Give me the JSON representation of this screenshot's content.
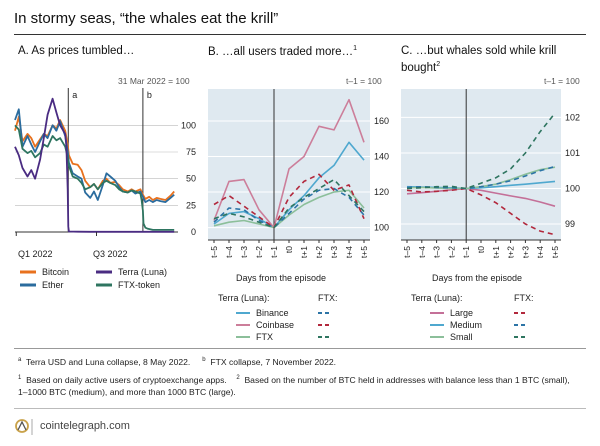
{
  "title": "In stormy seas, “the whales eat the krill”",
  "colors": {
    "bitcoin": "#e8711e",
    "ether": "#2b6c9e",
    "luna": "#4a2c82",
    "ftt": "#2e7560",
    "binance": "#4fa8cf",
    "coinbase": "#cc7e9a",
    "ftx_line": "#8cbf9a",
    "ftx_binance": "#2c74a6",
    "ftx_coinbase": "#b2283c",
    "ftx_ftx": "#2e7560",
    "large": "#c47098",
    "medium": "#4fa8cf",
    "small": "#8cbf9a",
    "panel_bg": "#dfe9f0"
  },
  "panelA": {
    "title": "A. As prices tumbled…",
    "subtitle": "31 Mar 2022 = 100",
    "note_a": "a",
    "note_b": "b"
  },
  "panelB": {
    "title": "B. …all users traded more…",
    "title_sup": "1",
    "subtitle": "t–1 = 100",
    "xlabel": "Days from the episode"
  },
  "panelC": {
    "title_line1": "C. …but whales sold while krill",
    "title_line2": "bought",
    "title_sup": "2",
    "subtitle": "t–1 = 100",
    "xlabel": "Days from the episode"
  },
  "legendA": {
    "bitcoin": "Bitcoin",
    "ether": "Ether",
    "luna": "Terra (Luna)",
    "ftt": "FTX-token"
  },
  "legendB": {
    "head_terra": "Terra (Luna):",
    "head_ftx": "FTX:",
    "binance": "Binance",
    "coinbase": "Coinbase",
    "ftx": "FTX"
  },
  "legendC": {
    "head_terra": "Terra (Luna):",
    "head_ftx": "FTX:",
    "large": "Large",
    "medium": "Medium",
    "small": "Small"
  },
  "notes": {
    "a_marker": "a",
    "a_text": "Terra USD and Luna collapse, 8 May 2022.",
    "b_marker": "b",
    "b_text": "FTX collapse, 7 November 2022.",
    "n1_marker": "1",
    "n1_text": "Based on daily active users of cryptoexchange apps.",
    "n2_marker": "2",
    "n2_text": "Based on the number of BTC held in addresses with balance less than 1 BTC (small),",
    "n2_line2": "1–1000 BTC (medium), and more than 1000 BTC (large)."
  },
  "footer": {
    "site": "cointelegraph.com"
  },
  "chart_data": [
    {
      "id": "A",
      "type": "line",
      "title": "A. As prices tumbled…",
      "ylabel": "31 Mar 2022 = 100",
      "x_ticks": [
        "Q1 2022",
        "Q3 2022"
      ],
      "y_ticks": [
        0,
        25,
        50,
        75,
        100
      ],
      "ylim": [
        0,
        135
      ],
      "x_range_months": [
        0,
        13
      ],
      "events": [
        {
          "label": "a",
          "month": 4.25
        },
        {
          "label": "b",
          "month": 10.2
        }
      ],
      "series": [
        {
          "name": "Bitcoin",
          "color_key": "bitcoin",
          "x": [
            0,
            0.3,
            0.6,
            1,
            1.3,
            1.6,
            2,
            2.3,
            2.6,
            3,
            3.3,
            3.6,
            4,
            4.2,
            4.3,
            4.6,
            5,
            5.3,
            5.6,
            6,
            6.3,
            6.6,
            7,
            7.3,
            7.6,
            8,
            8.3,
            8.6,
            9,
            9.3,
            9.6,
            10,
            10.2,
            10.4,
            10.7,
            11,
            11.3,
            11.6,
            12,
            12.4,
            12.7
          ],
          "y": [
            95,
            108,
            85,
            92,
            88,
            80,
            87,
            92,
            90,
            100,
            97,
            105,
            95,
            82,
            72,
            64,
            63,
            58,
            48,
            42,
            45,
            40,
            48,
            50,
            46,
            47,
            44,
            40,
            38,
            40,
            38,
            40,
            35,
            31,
            33,
            30,
            32,
            31,
            30,
            34,
            38
          ]
        },
        {
          "name": "Ether",
          "color_key": "ether",
          "x": [
            0,
            0.3,
            0.6,
            1,
            1.3,
            1.6,
            2,
            2.3,
            2.6,
            3,
            3.3,
            3.6,
            4,
            4.2,
            4.3,
            4.6,
            5,
            5.3,
            5.6,
            6,
            6.3,
            6.6,
            7,
            7.3,
            7.6,
            8,
            8.3,
            8.6,
            9,
            9.3,
            9.6,
            10,
            10.2,
            10.4,
            10.7,
            11,
            11.3,
            11.6,
            12,
            12.4,
            12.7
          ],
          "y": [
            105,
            115,
            80,
            90,
            82,
            75,
            85,
            92,
            88,
            100,
            95,
            104,
            90,
            76,
            65,
            55,
            52,
            50,
            37,
            32,
            38,
            30,
            44,
            55,
            52,
            48,
            42,
            38,
            37,
            39,
            36,
            38,
            33,
            28,
            30,
            28,
            30,
            29,
            28,
            32,
            35
          ]
        },
        {
          "name": "Terra (Luna)",
          "color_key": "luna",
          "x": [
            0,
            0.3,
            0.6,
            1,
            1.3,
            1.6,
            2,
            2.3,
            2.6,
            3,
            3.3,
            3.6,
            4,
            4.1,
            4.2,
            4.25,
            4.3,
            5,
            6,
            8,
            10,
            12,
            12.7
          ],
          "y": [
            80,
            72,
            60,
            52,
            58,
            50,
            68,
            88,
            110,
            125,
            112,
            100,
            92,
            80,
            40,
            5,
            0.5,
            0.3,
            0.2,
            0.2,
            0.2,
            0.2,
            0.2
          ]
        },
        {
          "name": "FTX-token",
          "color_key": "ftt",
          "x": [
            0,
            0.3,
            0.6,
            1,
            1.3,
            1.6,
            2,
            2.3,
            2.6,
            3,
            3.3,
            3.6,
            4,
            4.2,
            4.3,
            4.6,
            5,
            5.3,
            5.6,
            6,
            6.3,
            6.6,
            7,
            7.3,
            7.6,
            8,
            8.3,
            8.6,
            9,
            9.3,
            9.6,
            10,
            10.1,
            10.2,
            10.25,
            10.4,
            10.6,
            11,
            12,
            12.7
          ],
          "y": [
            100,
            96,
            78,
            74,
            76,
            70,
            74,
            82,
            80,
            90,
            86,
            88,
            80,
            70,
            62,
            52,
            50,
            46,
            40,
            42,
            45,
            40,
            46,
            48,
            46,
            44,
            40,
            38,
            37,
            39,
            38,
            36,
            30,
            20,
            8,
            4,
            3,
            2,
            2,
            2
          ]
        }
      ]
    },
    {
      "id": "B",
      "type": "line",
      "title": "B. …all users traded more…",
      "xlabel": "Days from the episode",
      "ylabel": "t–1 = 100",
      "categories": [
        "t–5",
        "t–4",
        "t–3",
        "t–2",
        "t–1",
        "t0",
        "t+1",
        "t+2",
        "t+3",
        "t+4",
        "t+5"
      ],
      "y_ticks": [
        100,
        120,
        140,
        160
      ],
      "ylim": [
        93,
        178
      ],
      "series": [
        {
          "name": "Terra (Luna) Binance",
          "color_key": "binance",
          "dash": false,
          "values": [
            102,
            108,
            109,
            105,
            100,
            110,
            118,
            128,
            135,
            148,
            138
          ]
        },
        {
          "name": "Terra (Luna) Coinbase",
          "color_key": "coinbase",
          "dash": false,
          "values": [
            104,
            126,
            127,
            110,
            100,
            133,
            140,
            157,
            155,
            172,
            148
          ]
        },
        {
          "name": "Terra (Luna) FTX",
          "color_key": "ftx_line",
          "dash": false,
          "values": [
            101,
            103,
            104,
            102,
            100,
            107,
            113,
            117,
            120,
            121,
            111
          ]
        },
        {
          "name": "FTX Binance",
          "color_key": "ftx_binance",
          "dash": true,
          "values": [
            103,
            111,
            110,
            104,
            100,
            108,
            116,
            121,
            122,
            117,
            107
          ]
        },
        {
          "name": "FTX Coinbase",
          "color_key": "ftx_coinbase",
          "dash": true,
          "values": [
            113,
            118,
            112,
            106,
            100,
            117,
            126,
            130,
            121,
            124,
            105
          ]
        },
        {
          "name": "FTX FTX",
          "color_key": "ftx_ftx",
          "dash": true,
          "values": [
            105,
            108,
            106,
            103,
            100,
            111,
            117,
            122,
            127,
            118,
            109
          ]
        }
      ]
    },
    {
      "id": "C",
      "type": "line",
      "title": "C. …but whales sold while krill bought",
      "xlabel": "Days from the episode",
      "ylabel": "t–1 = 100",
      "categories": [
        "t–5",
        "t–4",
        "t–3",
        "t–2",
        "t–1",
        "t0",
        "t+1",
        "t+2",
        "t+3",
        "t+4",
        "t+5"
      ],
      "y_ticks": [
        99,
        100,
        101,
        102
      ],
      "ylim": [
        98.55,
        102.8
      ],
      "series": [
        {
          "name": "Terra (Luna) Large",
          "color_key": "large",
          "dash": false,
          "values": [
            99.85,
            99.88,
            99.92,
            99.96,
            100,
            99.95,
            99.87,
            99.79,
            99.72,
            99.62,
            99.5
          ]
        },
        {
          "name": "Terra (Luna) Medium",
          "color_key": "medium",
          "dash": false,
          "values": [
            100.05,
            100.04,
            100.03,
            100.02,
            100,
            100.02,
            100.05,
            100.09,
            100.12,
            100.16,
            100.2
          ]
        },
        {
          "name": "Terra (Luna) Small",
          "color_key": "small",
          "dash": false,
          "values": [
            100.02,
            100.03,
            100.01,
            100.0,
            100,
            100.05,
            100.12,
            100.25,
            100.4,
            100.53,
            100.6
          ]
        },
        {
          "name": "FTX Large",
          "color_key": "ftx_coinbase",
          "dash": true,
          "values": [
            99.95,
            99.9,
            99.92,
            99.95,
            100,
            99.82,
            99.6,
            99.3,
            99.0,
            98.8,
            98.7
          ]
        },
        {
          "name": "FTX Medium",
          "color_key": "ftx_binance",
          "dash": true,
          "values": [
            100.03,
            100.05,
            100.03,
            100.02,
            100,
            100.05,
            100.12,
            100.22,
            100.35,
            100.5,
            100.62
          ]
        },
        {
          "name": "FTX Small",
          "color_key": "ftx_ftx",
          "dash": true,
          "values": [
            100.0,
            100.02,
            100.05,
            100.06,
            100,
            100.15,
            100.3,
            100.55,
            101.0,
            101.6,
            102.12
          ]
        }
      ]
    }
  ]
}
